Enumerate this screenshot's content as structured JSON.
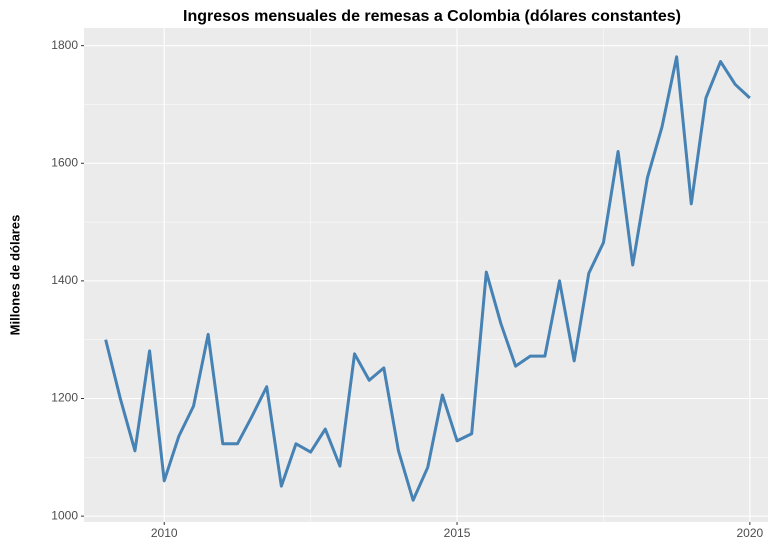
{
  "chart_data": {
    "type": "line",
    "title": "Ingresos mensuales de remesas a Colombia (dólares constantes)",
    "y_label": "Millones de dólares",
    "x": [
      2009,
      2009.25,
      2009.5,
      2009.75,
      2010,
      2010.25,
      2010.5,
      2010.75,
      2011,
      2011.25,
      2011.5,
      2011.75,
      2012,
      2012.25,
      2012.5,
      2012.75,
      2013,
      2013.25,
      2013.5,
      2013.75,
      2014,
      2014.25,
      2014.5,
      2014.75,
      2015,
      2015.25,
      2015.5,
      2015.75,
      2016,
      2016.25,
      2016.5,
      2016.75,
      2017,
      2017.25,
      2017.5,
      2017.75,
      2018,
      2018.25,
      2018.5,
      2018.75,
      2019,
      2019.25,
      2019.5,
      2019.75,
      2020
    ],
    "series": [
      {
        "color": "#4682b4",
        "values": [
          1300,
          1200,
          1111,
          1281,
          1060,
          1136,
          1187,
          1309,
          1123,
          1123,
          1170,
          1220,
          1051,
          1123,
          1109,
          1148,
          1085,
          1276,
          1231,
          1252,
          1111,
          1027,
          1083,
          1206,
          1128,
          1140,
          1415,
          1327,
          1255,
          1272,
          1272,
          1400,
          1264,
          1413,
          1465,
          1620,
          1427,
          1575,
          1662,
          1781,
          1531,
          1711,
          1773,
          1734,
          1711
        ]
      }
    ],
    "xlim": [
      2008.63,
      2020.31
    ],
    "xticks": [
      2010,
      2015,
      2020
    ],
    "ylim": [
      990,
      1830
    ],
    "yticks": [
      1000,
      1200,
      1400,
      1600,
      1800
    ],
    "grid": true
  }
}
